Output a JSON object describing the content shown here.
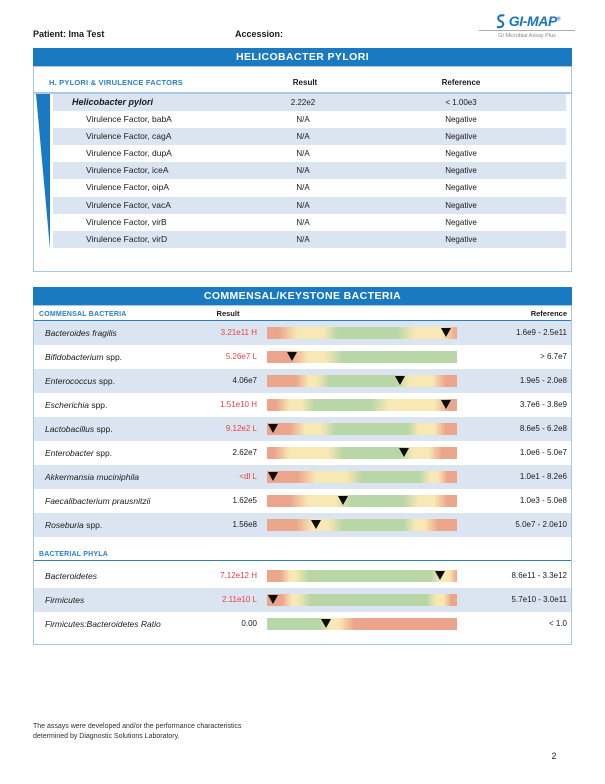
{
  "colors": {
    "brand_blue": "#1979c1",
    "label_blue": "#2b7fc3",
    "row_shade": "#dbe4f1",
    "box_border": "#a6c7e7",
    "flag_red": "#e8423c",
    "bar_salmon": "#eba58c",
    "bar_cream": "#f8e9b4",
    "bar_green": "#b9d6a6",
    "marker_black": "#0d0d0d"
  },
  "header": {
    "patient": "Patient: Ima Test",
    "accession": "Accession:",
    "logo": {
      "brand": "GI-MAP",
      "mark": "®",
      "tagline": "GI Microbial Assay Plus"
    }
  },
  "hp_section": {
    "title": "HELICOBACTER PYLORI",
    "columns": {
      "group": "H. PYLORI & VIRULENCE FACTORS",
      "result": "Result",
      "reference": "Reference"
    },
    "rows": [
      {
        "name": "Helicobacter pylori",
        "result": "2.22e2",
        "reference": "< 1.00e3",
        "emphasis": true,
        "shaded": true
      },
      {
        "name": "Virulence Factor, babA",
        "result": "N/A",
        "reference": "Negative",
        "emphasis": false,
        "shaded": false
      },
      {
        "name": "Virulence Factor, cagA",
        "result": "N/A",
        "reference": "Negative",
        "emphasis": false,
        "shaded": true
      },
      {
        "name": "Virulence Factor, dupA",
        "result": "N/A",
        "reference": "Negative",
        "emphasis": false,
        "shaded": false
      },
      {
        "name": "Virulence Factor, iceA",
        "result": "N/A",
        "reference": "Negative",
        "emphasis": false,
        "shaded": true
      },
      {
        "name": "Virulence Factor, oipA",
        "result": "N/A",
        "reference": "Negative",
        "emphasis": false,
        "shaded": false
      },
      {
        "name": "Virulence Factor, vacA",
        "result": "N/A",
        "reference": "Negative",
        "emphasis": false,
        "shaded": true
      },
      {
        "name": "Virulence Factor, virB",
        "result": "N/A",
        "reference": "Negative",
        "emphasis": false,
        "shaded": false
      },
      {
        "name": "Virulence Factor, virD",
        "result": "N/A",
        "reference": "Negative",
        "emphasis": false,
        "shaded": true
      }
    ]
  },
  "commensal_section": {
    "title": "COMMENSAL/KEYSTONE BACTERIA",
    "columns": {
      "result": "Result",
      "reference": "Reference"
    },
    "groups": [
      {
        "label": "COMMENSAL BACTERIA",
        "rows": [
          {
            "name": "Bacteroides fragilis",
            "suffix": "",
            "result": "3.21e11 H",
            "flag": "high",
            "reference": "1.6e9 - 2.5e11",
            "shaded": true,
            "marker_pct": 94,
            "stops": [
              [
                "salmon",
                0
              ],
              [
                "salmon",
                6
              ],
              [
                "cream",
                16
              ],
              [
                "cream",
                30
              ],
              [
                "green",
                37
              ],
              [
                "green",
                68
              ],
              [
                "cream",
                78
              ],
              [
                "cream",
                92
              ],
              [
                "salmon",
                100
              ]
            ]
          },
          {
            "name": "Bifidobacterium",
            "suffix": "spp.",
            "result": "5.26e7 L",
            "flag": "low",
            "reference": "> 6.7e7",
            "shaded": false,
            "marker_pct": 13,
            "stops": [
              [
                "salmon",
                0
              ],
              [
                "salmon",
                12
              ],
              [
                "cream",
                22
              ],
              [
                "cream",
                30
              ],
              [
                "green",
                40
              ],
              [
                "green",
                100
              ]
            ]
          },
          {
            "name": "Enterococcus",
            "suffix": "spp.",
            "result": "4.06e7",
            "flag": "normal",
            "reference": "1.9e5 - 2.0e8",
            "shaded": true,
            "marker_pct": 70,
            "stops": [
              [
                "salmon",
                0
              ],
              [
                "salmon",
                15
              ],
              [
                "cream",
                22
              ],
              [
                "cream",
                26
              ],
              [
                "green",
                33
              ],
              [
                "green",
                68
              ],
              [
                "cream",
                75
              ],
              [
                "cream",
                87
              ],
              [
                "salmon",
                94
              ],
              [
                "salmon",
                100
              ]
            ]
          },
          {
            "name": "Escherichia",
            "suffix": "spp.",
            "result": "1.51e10 H",
            "flag": "high",
            "reference": "3.7e6 - 3.8e9",
            "shaded": false,
            "marker_pct": 94,
            "stops": [
              [
                "salmon",
                0
              ],
              [
                "salmon",
                5
              ],
              [
                "cream",
                12
              ],
              [
                "cream",
                18
              ],
              [
                "green",
                25
              ],
              [
                "green",
                55
              ],
              [
                "cream",
                64
              ],
              [
                "cream",
                88
              ],
              [
                "salmon",
                96
              ],
              [
                "salmon",
                100
              ]
            ]
          },
          {
            "name": "Lactobacillus",
            "suffix": "spp.",
            "result": "9.12e2 L",
            "flag": "low",
            "reference": "8.6e5 - 6.2e8",
            "shaded": true,
            "marker_pct": 3,
            "stops": [
              [
                "salmon",
                0
              ],
              [
                "salmon",
                12
              ],
              [
                "cream",
                20
              ],
              [
                "cream",
                28
              ],
              [
                "green",
                36
              ],
              [
                "green",
                74
              ],
              [
                "cream",
                80
              ],
              [
                "cream",
                88
              ],
              [
                "salmon",
                94
              ],
              [
                "salmon",
                100
              ]
            ]
          },
          {
            "name": "Enterobacter",
            "suffix": "spp.",
            "result": "2.62e7",
            "flag": "normal",
            "reference": "1.0e6 - 5.0e7",
            "shaded": false,
            "marker_pct": 72,
            "stops": [
              [
                "salmon",
                0
              ],
              [
                "salmon",
                4
              ],
              [
                "cream",
                12
              ],
              [
                "cream",
                32
              ],
              [
                "green",
                40
              ],
              [
                "green",
                70
              ],
              [
                "cream",
                77
              ],
              [
                "cream",
                85
              ],
              [
                "salmon",
                92
              ],
              [
                "salmon",
                100
              ]
            ]
          },
          {
            "name": "Akkermansia muciniphila",
            "suffix": "",
            "result": "<dl L",
            "flag": "low",
            "reference": "1.0e1 - 8.2e6",
            "shaded": true,
            "marker_pct": 3,
            "stops": [
              [
                "salmon",
                0
              ],
              [
                "salmon",
                16
              ],
              [
                "cream",
                26
              ],
              [
                "cream",
                42
              ],
              [
                "green",
                50
              ],
              [
                "green",
                80
              ],
              [
                "cream",
                86
              ],
              [
                "cream",
                90
              ],
              [
                "salmon",
                95
              ],
              [
                "salmon",
                100
              ]
            ]
          },
          {
            "name": "Faecalibacterium prausnitzii",
            "suffix": "",
            "result": "1.62e5",
            "flag": "normal",
            "reference": "1.0e3 - 5.0e8",
            "shaded": false,
            "marker_pct": 40,
            "stops": [
              [
                "salmon",
                0
              ],
              [
                "salmon",
                12
              ],
              [
                "cream",
                22
              ],
              [
                "cream",
                36
              ],
              [
                "green",
                44
              ],
              [
                "green",
                72
              ],
              [
                "cream",
                80
              ],
              [
                "cream",
                88
              ],
              [
                "salmon",
                95
              ],
              [
                "salmon",
                100
              ]
            ]
          },
          {
            "name": "Roseburia",
            "suffix": "spp.",
            "result": "1.56e8",
            "flag": "normal",
            "reference": "5.0e7 - 2.0e10",
            "shaded": true,
            "marker_pct": 26,
            "stops": [
              [
                "salmon",
                0
              ],
              [
                "salmon",
                15
              ],
              [
                "cream",
                24
              ],
              [
                "cream",
                32
              ],
              [
                "green",
                40
              ],
              [
                "green",
                72
              ],
              [
                "cream",
                78
              ],
              [
                "cream",
                83
              ],
              [
                "salmon",
                90
              ],
              [
                "salmon",
                100
              ]
            ]
          }
        ]
      },
      {
        "label": "BACTERIAL PHYLA",
        "rows": [
          {
            "name": "Bacteroidetes",
            "suffix": "",
            "result": "7.12e12 H",
            "flag": "high",
            "reference": "8.6e11 - 3.3e12",
            "shaded": false,
            "marker_pct": 91,
            "stops": [
              [
                "salmon",
                0
              ],
              [
                "salmon",
                7
              ],
              [
                "cream",
                12
              ],
              [
                "cream",
                15
              ],
              [
                "green",
                22
              ],
              [
                "green",
                86
              ],
              [
                "cream",
                92
              ],
              [
                "cream",
                96
              ],
              [
                "salmon",
                100
              ]
            ]
          },
          {
            "name": "Firmicutes",
            "suffix": "",
            "result": "2.11e10 L",
            "flag": "low",
            "reference": "5.7e10 - 3.0e11",
            "shaded": true,
            "marker_pct": 3,
            "stops": [
              [
                "salmon",
                0
              ],
              [
                "salmon",
                8
              ],
              [
                "cream",
                13
              ],
              [
                "cream",
                16
              ],
              [
                "green",
                23
              ],
              [
                "green",
                84
              ],
              [
                "cream",
                89
              ],
              [
                "cream",
                93
              ],
              [
                "salmon",
                97
              ],
              [
                "salmon",
                100
              ]
            ]
          },
          {
            "name": "Firmicutes:Bacteroidetes Ratio",
            "suffix": "",
            "result": "0.00",
            "flag": "normal",
            "reference": "< 1.0",
            "shaded": false,
            "marker_pct": 31,
            "stops": [
              [
                "green",
                0
              ],
              [
                "green",
                28
              ],
              [
                "cream",
                33
              ],
              [
                "cream",
                38
              ],
              [
                "salmon",
                46
              ],
              [
                "salmon",
                100
              ]
            ]
          }
        ]
      }
    ]
  },
  "footer": {
    "disclaimer_line1": "The assays were developed and/or the performance characteristics",
    "disclaimer_line2": "determined by Diagnostic Solutions Laboratory.",
    "page_number": "2"
  }
}
